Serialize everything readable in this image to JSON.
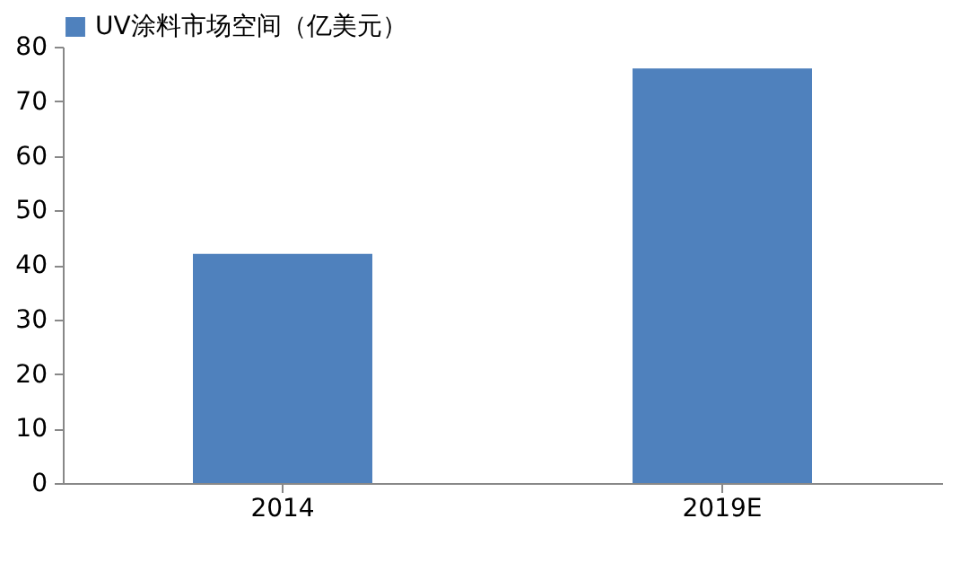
{
  "chart_data": {
    "type": "bar",
    "categories": [
      "2014",
      "2019E"
    ],
    "series": [
      {
        "name": "UV涂料市场空间（亿美元）",
        "color": "#4f81bd",
        "values": [
          42,
          76
        ]
      }
    ],
    "ylim": [
      0,
      80
    ],
    "yticks": [
      0,
      10,
      20,
      30,
      40,
      50,
      60,
      70,
      80
    ],
    "grid": false,
    "legend": "top"
  }
}
